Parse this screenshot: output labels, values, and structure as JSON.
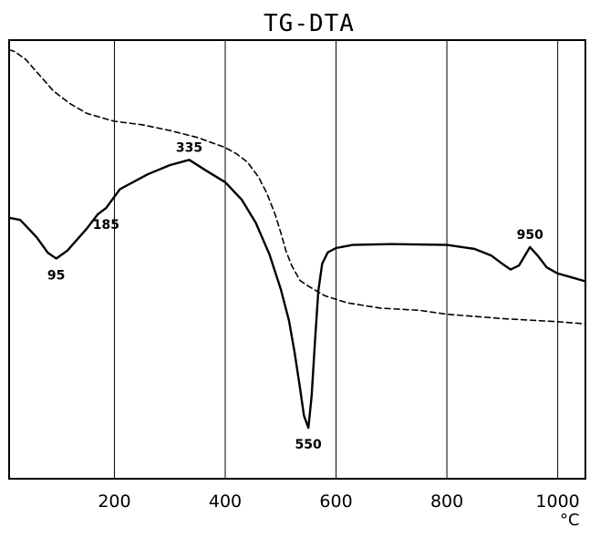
{
  "chart_data": {
    "type": "line",
    "title": "TG-DTA",
    "xlim": [
      10,
      1050
    ],
    "ylim": [
      0,
      100
    ],
    "grid": true,
    "x_ticks": [
      {
        "value": 200,
        "label": "200"
      },
      {
        "value": 400,
        "label": "400"
      },
      {
        "value": 600,
        "label": "600"
      },
      {
        "value": 800,
        "label": "800"
      },
      {
        "value": 1000,
        "label": "1000"
      }
    ],
    "x_unit": "°C",
    "series": [
      {
        "style": "solid",
        "x": [
          10,
          30,
          60,
          80,
          95,
          115,
          150,
          170,
          185,
          210,
          260,
          300,
          335,
          370,
          400,
          430,
          455,
          480,
          500,
          515,
          525,
          535,
          542,
          550,
          556,
          562,
          568,
          575,
          585,
          600,
          630,
          700,
          800,
          850,
          880,
          900,
          915,
          930,
          950,
          965,
          980,
          1000,
          1020,
          1050
        ],
        "y": [
          59.5,
          59,
          55,
          51.5,
          50.2,
          52,
          57,
          60.3,
          61.7,
          66,
          69.4,
          71.5,
          72.7,
          69.9,
          67.6,
          63.6,
          58.4,
          51.1,
          43.3,
          36.1,
          28.9,
          20.7,
          14.4,
          11.6,
          19,
          31.2,
          42.8,
          49,
          51.6,
          52.6,
          53.3,
          53.5,
          53.3,
          52.4,
          50.9,
          49,
          47.7,
          48.6,
          52.8,
          50.7,
          48.2,
          46.8,
          46.1,
          45
        ]
      },
      {
        "style": "dashed",
        "x": [
          10,
          20,
          40,
          60,
          90,
          120,
          150,
          180,
          200,
          250,
          300,
          350,
          400,
          420,
          440,
          460,
          475,
          490,
          500,
          510,
          520,
          535,
          550,
          580,
          620,
          680,
          750,
          800,
          900,
          1000,
          1050
        ],
        "y": [
          97.8,
          97.4,
          95.6,
          92.7,
          88.4,
          85.5,
          83.3,
          82.2,
          81.5,
          80.7,
          79.4,
          77.8,
          75.5,
          74.1,
          72.2,
          68.8,
          65.1,
          60.3,
          56.2,
          51.8,
          48.6,
          45.2,
          43.9,
          41.7,
          40.1,
          38.9,
          38.4,
          37.5,
          36.5,
          35.8,
          35.3
        ]
      }
    ],
    "annotations": [
      {
        "label": "95",
        "x": 95,
        "y": 50.2,
        "pos": "below"
      },
      {
        "label": "185",
        "x": 185,
        "y": 61.7,
        "pos": "below"
      },
      {
        "label": "335",
        "x": 335,
        "y": 72.7,
        "pos": "above"
      },
      {
        "label": "550",
        "x": 550,
        "y": 11.6,
        "pos": "below"
      },
      {
        "label": "950",
        "x": 950,
        "y": 52.8,
        "pos": "above"
      }
    ]
  }
}
